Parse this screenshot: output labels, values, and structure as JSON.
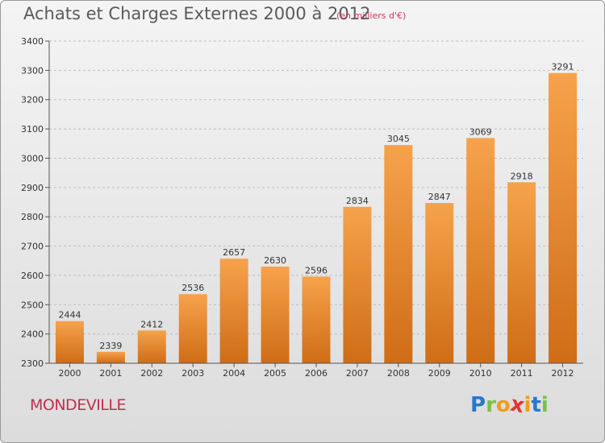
{
  "header": {
    "title": "Achats et Charges Externes 2000 à 2012",
    "subtitle": "(en milliers d'€)"
  },
  "footer": {
    "town": "MONDEVILLE",
    "logo_letters": [
      "P",
      "r",
      "o",
      "x",
      "i",
      "t",
      "i"
    ],
    "logo_colors": [
      "#2a78c8",
      "#7ac143",
      "#f29c1c",
      "#e8342c",
      "#f29c1c",
      "#2a78c8",
      "#7ac143"
    ]
  },
  "colors": {
    "bar_top": "#f6a24c",
    "bar_bottom": "#cf6d16",
    "grid": "#bdbdbd",
    "axis": "#555555"
  },
  "chart_data": {
    "type": "bar",
    "title": "Achats et Charges Externes 2000 à 2012",
    "xlabel": "",
    "ylabel": "",
    "categories": [
      "2000",
      "2001",
      "2002",
      "2003",
      "2004",
      "2005",
      "2006",
      "2007",
      "2008",
      "2009",
      "2010",
      "2011",
      "2012"
    ],
    "values": [
      2444,
      2339,
      2412,
      2536,
      2657,
      2630,
      2596,
      2834,
      3045,
      2847,
      3069,
      2918,
      3291
    ],
    "ylim": [
      2300,
      3400
    ],
    "yticks": [
      2300,
      2400,
      2500,
      2600,
      2700,
      2800,
      2900,
      3000,
      3100,
      3200,
      3300,
      3400
    ],
    "grid": true,
    "grid_style": "dashed"
  }
}
